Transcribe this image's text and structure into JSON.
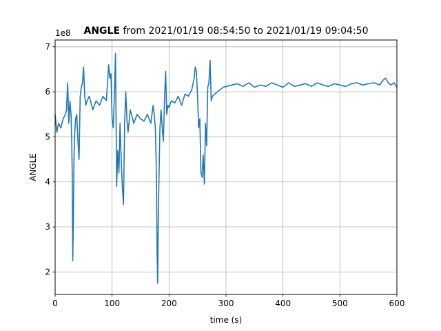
{
  "chart_data": {
    "type": "line",
    "title": {
      "bold": "ANGLE",
      "rest": " from 2021/01/19 08:54:50 to 2021/01/19 09:04:50"
    },
    "xlabel": "time (s)",
    "ylabel": "ANGLE",
    "y_offset_text": "1e8",
    "xlim": [
      0,
      600
    ],
    "ylim": [
      1.5,
      7.15
    ],
    "xticks": [
      0,
      100,
      200,
      300,
      400,
      500,
      600
    ],
    "yticks": [
      2,
      3,
      4,
      5,
      6,
      7
    ],
    "grid": true,
    "line_color": "#1f77b4",
    "series": [
      {
        "x": [
          0,
          3,
          6,
          10,
          14,
          18,
          20,
          22,
          24,
          26,
          28,
          29,
          30,
          31,
          32,
          33,
          34,
          36,
          38,
          40,
          42,
          44,
          46,
          48,
          50,
          52,
          54,
          56,
          60,
          66,
          72,
          78,
          84,
          90,
          94,
          96,
          98,
          100,
          102,
          104,
          106,
          108,
          110,
          112,
          114,
          116,
          118,
          120,
          122,
          124,
          126,
          128,
          132,
          138,
          144,
          150,
          156,
          162,
          168,
          172,
          174,
          176,
          178,
          179,
          180,
          181,
          182,
          184,
          186,
          188,
          190,
          192,
          194,
          196,
          198,
          200,
          204,
          210,
          216,
          222,
          228,
          234,
          240,
          244,
          246,
          248,
          250,
          252,
          254,
          256,
          258,
          260,
          262,
          264,
          266,
          268,
          270,
          272,
          274,
          276,
          280,
          285,
          290,
          295,
          300,
          310,
          320,
          330,
          340,
          350,
          360,
          370,
          380,
          390,
          400,
          410,
          420,
          430,
          440,
          450,
          460,
          470,
          480,
          490,
          500,
          510,
          520,
          530,
          540,
          550,
          560,
          570,
          575,
          580,
          585,
          590,
          595,
          600
        ],
        "values": [
          5.5,
          5.1,
          5.3,
          5.2,
          5.4,
          5.5,
          5.6,
          6.2,
          5.3,
          5.8,
          5.5,
          5.0,
          4.2,
          2.25,
          3.2,
          4.4,
          5.0,
          5.4,
          5.5,
          4.9,
          4.5,
          5.9,
          6.1,
          6.2,
          6.55,
          5.9,
          5.7,
          5.8,
          5.9,
          5.6,
          5.8,
          5.7,
          5.9,
          5.8,
          6.6,
          6.3,
          6.4,
          5.4,
          5.2,
          5.9,
          6.85,
          3.9,
          4.7,
          4.2,
          5.3,
          4.5,
          3.9,
          3.5,
          5.3,
          6.0,
          5.4,
          5.1,
          5.6,
          5.3,
          5.5,
          5.4,
          5.35,
          5.5,
          5.3,
          5.7,
          5.5,
          5.2,
          4.1,
          2.4,
          1.75,
          3.0,
          3.9,
          5.2,
          5.6,
          5.2,
          4.9,
          5.8,
          6.45,
          5.5,
          5.7,
          5.65,
          5.8,
          5.75,
          5.9,
          5.7,
          5.95,
          5.9,
          6.05,
          6.3,
          6.55,
          6.45,
          5.9,
          5.2,
          5.4,
          4.2,
          4.1,
          4.6,
          3.95,
          5.3,
          4.8,
          6.1,
          6.2,
          6.7,
          5.8,
          5.9,
          5.95,
          6.0,
          6.05,
          6.1,
          6.12,
          6.15,
          6.18,
          6.12,
          6.2,
          6.1,
          6.15,
          6.12,
          6.2,
          6.15,
          6.1,
          6.2,
          6.12,
          6.15,
          6.18,
          6.12,
          6.2,
          6.15,
          6.12,
          6.18,
          6.15,
          6.12,
          6.18,
          6.2,
          6.15,
          6.18,
          6.2,
          6.15,
          6.25,
          6.3,
          6.2,
          6.15,
          6.2,
          6.1
        ]
      }
    ]
  }
}
